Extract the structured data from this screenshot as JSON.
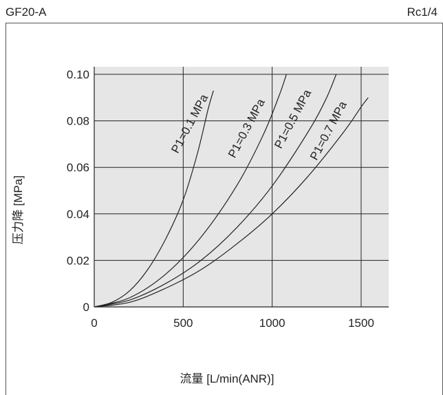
{
  "header": {
    "model": "GF20-A",
    "port": "Rc1/4"
  },
  "chart_data": {
    "type": "line",
    "xlabel": "流量 [L/min(ANR)]",
    "ylabel": "压力降 [MPa]",
    "xlim": [
      0,
      1650
    ],
    "ylim": [
      0,
      0.1
    ],
    "xticks": [
      {
        "value": 0,
        "label": "0"
      },
      {
        "value": 500,
        "label": "500"
      },
      {
        "value": 1000,
        "label": "1000"
      },
      {
        "value": 1500,
        "label": "1500"
      }
    ],
    "yticks": [
      {
        "value": 0,
        "label": "0"
      },
      {
        "value": 0.02,
        "label": "0.02"
      },
      {
        "value": 0.04,
        "label": "0.04"
      },
      {
        "value": 0.06,
        "label": "0.06"
      },
      {
        "value": 0.08,
        "label": "0.08"
      },
      {
        "value": 0.1,
        "label": "0.10"
      }
    ],
    "grid": true,
    "colors": {
      "background": "#e6e6e6",
      "line": "#222222"
    },
    "series": [
      {
        "name": "P1=0.1 MPa",
        "points": [
          [
            0,
            0
          ],
          [
            100,
            0.002
          ],
          [
            200,
            0.007
          ],
          [
            300,
            0.016
          ],
          [
            400,
            0.029
          ],
          [
            500,
            0.046
          ],
          [
            580,
            0.066
          ],
          [
            640,
            0.085
          ],
          [
            670,
            0.093
          ]
        ]
      },
      {
        "name": "P1=0.3 MPa",
        "points": [
          [
            0,
            0
          ],
          [
            200,
            0.004
          ],
          [
            400,
            0.014
          ],
          [
            600,
            0.03
          ],
          [
            800,
            0.052
          ],
          [
            950,
            0.074
          ],
          [
            1040,
            0.091
          ],
          [
            1080,
            0.1
          ]
        ]
      },
      {
        "name": "P1=0.5 MPa",
        "points": [
          [
            0,
            0
          ],
          [
            200,
            0.003
          ],
          [
            400,
            0.01
          ],
          [
            600,
            0.02
          ],
          [
            800,
            0.034
          ],
          [
            1000,
            0.052
          ],
          [
            1200,
            0.075
          ],
          [
            1300,
            0.089
          ],
          [
            1360,
            0.1
          ]
        ]
      },
      {
        "name": "P1=0.7 MPa",
        "points": [
          [
            0,
            0
          ],
          [
            200,
            0.002
          ],
          [
            400,
            0.008
          ],
          [
            600,
            0.016
          ],
          [
            800,
            0.027
          ],
          [
            1000,
            0.04
          ],
          [
            1200,
            0.056
          ],
          [
            1400,
            0.075
          ],
          [
            1500,
            0.086
          ],
          [
            1540,
            0.09
          ]
        ]
      }
    ],
    "labels": [
      {
        "series": 0,
        "at": [
          555,
          0.078
        ]
      },
      {
        "series": 1,
        "at": [
          875,
          0.076
        ]
      },
      {
        "series": 2,
        "at": [
          1135,
          0.08
        ]
      },
      {
        "series": 3,
        "at": [
          1335,
          0.075
        ]
      }
    ]
  }
}
